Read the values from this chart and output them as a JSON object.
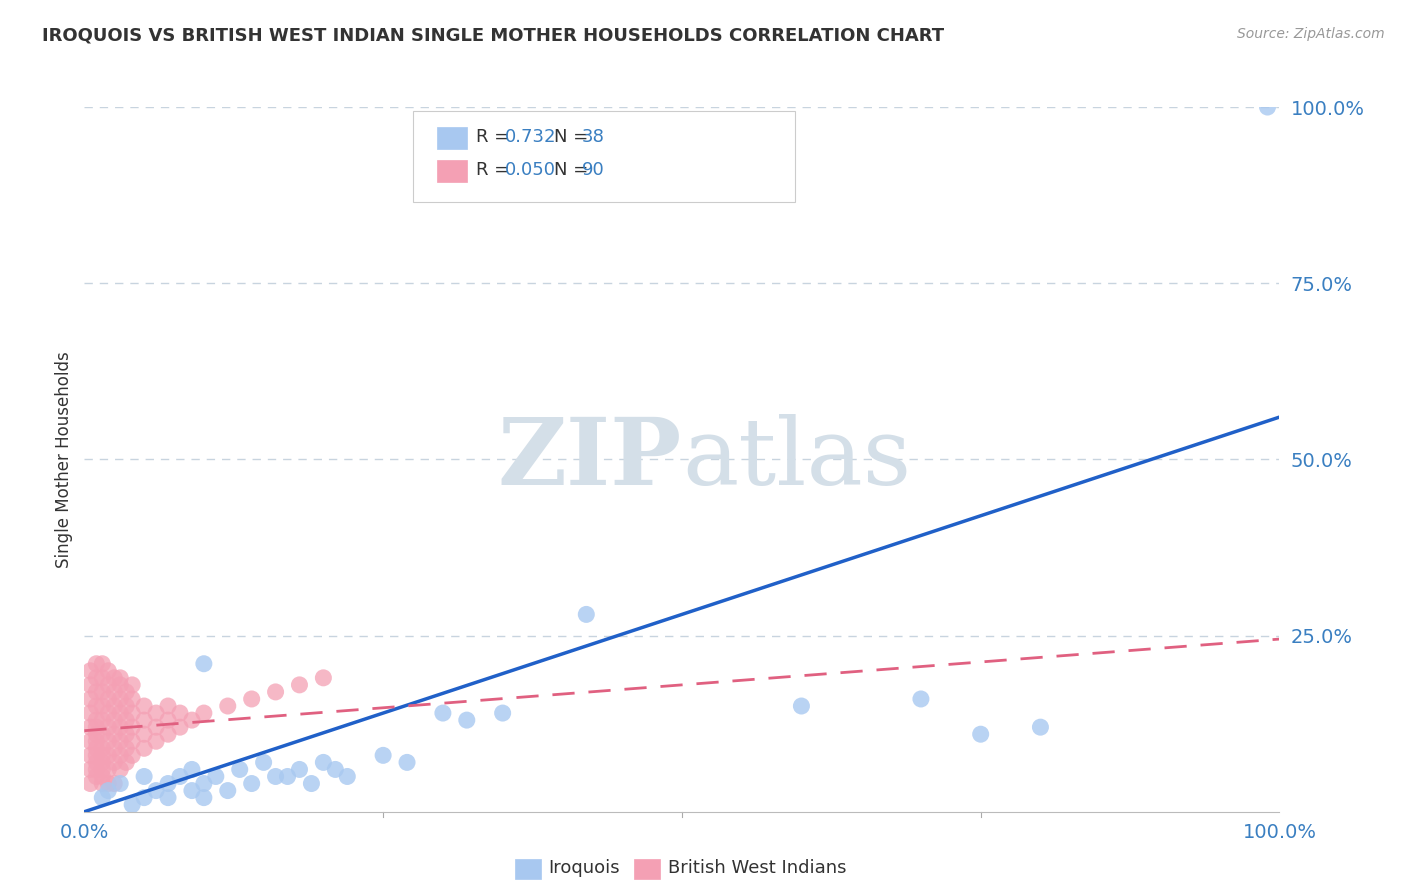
{
  "title": "IROQUOIS VS BRITISH WEST INDIAN SINGLE MOTHER HOUSEHOLDS CORRELATION CHART",
  "source": "Source: ZipAtlas.com",
  "ylabel": "Single Mother Households",
  "xlim": [
    0,
    1.0
  ],
  "ylim": [
    0,
    1.0
  ],
  "ytick_positions": [
    0.25,
    0.5,
    0.75,
    1.0
  ],
  "ytick_labels": [
    "25.0%",
    "50.0%",
    "75.0%",
    "100.0%"
  ],
  "iroquois_R": "0.732",
  "iroquois_N": "38",
  "bwi_R": "0.050",
  "bwi_N": "90",
  "iroquois_color": "#a8c8f0",
  "bwi_color": "#f4a0b4",
  "iroquois_line_color": "#2060c8",
  "bwi_line_color": "#e06080",
  "label_color": "#3a7fc1",
  "text_color": "#333333",
  "watermark_color": "#d4dfe8",
  "grid_color": "#c8d4df",
  "background_color": "#ffffff",
  "iroquois_line_x": [
    0.0,
    1.0
  ],
  "iroquois_line_y": [
    0.0,
    0.56
  ],
  "bwi_line_x": [
    0.0,
    1.0
  ],
  "bwi_line_y": [
    0.115,
    0.245
  ],
  "iroquois_scatter": [
    [
      0.015,
      0.02
    ],
    [
      0.02,
      0.03
    ],
    [
      0.03,
      0.04
    ],
    [
      0.04,
      0.01
    ],
    [
      0.05,
      0.05
    ],
    [
      0.05,
      0.02
    ],
    [
      0.06,
      0.03
    ],
    [
      0.07,
      0.04
    ],
    [
      0.07,
      0.02
    ],
    [
      0.08,
      0.05
    ],
    [
      0.09,
      0.03
    ],
    [
      0.09,
      0.06
    ],
    [
      0.1,
      0.04
    ],
    [
      0.1,
      0.02
    ],
    [
      0.11,
      0.05
    ],
    [
      0.12,
      0.03
    ],
    [
      0.13,
      0.06
    ],
    [
      0.14,
      0.04
    ],
    [
      0.15,
      0.07
    ],
    [
      0.16,
      0.05
    ],
    [
      0.17,
      0.05
    ],
    [
      0.18,
      0.06
    ],
    [
      0.19,
      0.04
    ],
    [
      0.2,
      0.07
    ],
    [
      0.21,
      0.06
    ],
    [
      0.22,
      0.05
    ],
    [
      0.25,
      0.08
    ],
    [
      0.27,
      0.07
    ],
    [
      0.1,
      0.21
    ],
    [
      0.3,
      0.14
    ],
    [
      0.32,
      0.13
    ],
    [
      0.35,
      0.14
    ],
    [
      0.42,
      0.28
    ],
    [
      0.6,
      0.15
    ],
    [
      0.7,
      0.16
    ],
    [
      0.75,
      0.11
    ],
    [
      0.8,
      0.12
    ],
    [
      0.99,
      1.0
    ]
  ],
  "bwi_scatter": [
    [
      0.005,
      0.04
    ],
    [
      0.005,
      0.06
    ],
    [
      0.005,
      0.08
    ],
    [
      0.005,
      0.1
    ],
    [
      0.005,
      0.12
    ],
    [
      0.005,
      0.14
    ],
    [
      0.005,
      0.16
    ],
    [
      0.005,
      0.18
    ],
    [
      0.01,
      0.05
    ],
    [
      0.01,
      0.07
    ],
    [
      0.01,
      0.09
    ],
    [
      0.01,
      0.11
    ],
    [
      0.01,
      0.13
    ],
    [
      0.01,
      0.15
    ],
    [
      0.01,
      0.17
    ],
    [
      0.01,
      0.19
    ],
    [
      0.01,
      0.06
    ],
    [
      0.01,
      0.08
    ],
    [
      0.01,
      0.1
    ],
    [
      0.01,
      0.12
    ],
    [
      0.015,
      0.05
    ],
    [
      0.015,
      0.07
    ],
    [
      0.015,
      0.09
    ],
    [
      0.015,
      0.11
    ],
    [
      0.015,
      0.13
    ],
    [
      0.015,
      0.15
    ],
    [
      0.015,
      0.17
    ],
    [
      0.015,
      0.19
    ],
    [
      0.015,
      0.21
    ],
    [
      0.015,
      0.06
    ],
    [
      0.015,
      0.08
    ],
    [
      0.02,
      0.06
    ],
    [
      0.02,
      0.08
    ],
    [
      0.02,
      0.1
    ],
    [
      0.02,
      0.12
    ],
    [
      0.02,
      0.14
    ],
    [
      0.02,
      0.16
    ],
    [
      0.02,
      0.18
    ],
    [
      0.025,
      0.07
    ],
    [
      0.025,
      0.09
    ],
    [
      0.025,
      0.11
    ],
    [
      0.025,
      0.13
    ],
    [
      0.025,
      0.15
    ],
    [
      0.025,
      0.17
    ],
    [
      0.025,
      0.19
    ],
    [
      0.03,
      0.06
    ],
    [
      0.03,
      0.08
    ],
    [
      0.03,
      0.1
    ],
    [
      0.03,
      0.12
    ],
    [
      0.03,
      0.14
    ],
    [
      0.03,
      0.16
    ],
    [
      0.03,
      0.18
    ],
    [
      0.035,
      0.07
    ],
    [
      0.035,
      0.09
    ],
    [
      0.035,
      0.11
    ],
    [
      0.035,
      0.13
    ],
    [
      0.035,
      0.15
    ],
    [
      0.035,
      0.17
    ],
    [
      0.04,
      0.08
    ],
    [
      0.04,
      0.1
    ],
    [
      0.04,
      0.12
    ],
    [
      0.04,
      0.14
    ],
    [
      0.04,
      0.16
    ],
    [
      0.04,
      0.18
    ],
    [
      0.05,
      0.09
    ],
    [
      0.05,
      0.11
    ],
    [
      0.05,
      0.13
    ],
    [
      0.05,
      0.15
    ],
    [
      0.06,
      0.1
    ],
    [
      0.06,
      0.12
    ],
    [
      0.06,
      0.14
    ],
    [
      0.07,
      0.11
    ],
    [
      0.07,
      0.13
    ],
    [
      0.07,
      0.15
    ],
    [
      0.08,
      0.12
    ],
    [
      0.08,
      0.14
    ],
    [
      0.09,
      0.13
    ],
    [
      0.1,
      0.14
    ],
    [
      0.12,
      0.15
    ],
    [
      0.14,
      0.16
    ],
    [
      0.16,
      0.17
    ],
    [
      0.18,
      0.18
    ],
    [
      0.2,
      0.19
    ],
    [
      0.005,
      0.2
    ],
    [
      0.01,
      0.21
    ],
    [
      0.02,
      0.2
    ],
    [
      0.03,
      0.19
    ],
    [
      0.015,
      0.04
    ],
    [
      0.02,
      0.04
    ],
    [
      0.025,
      0.04
    ]
  ]
}
